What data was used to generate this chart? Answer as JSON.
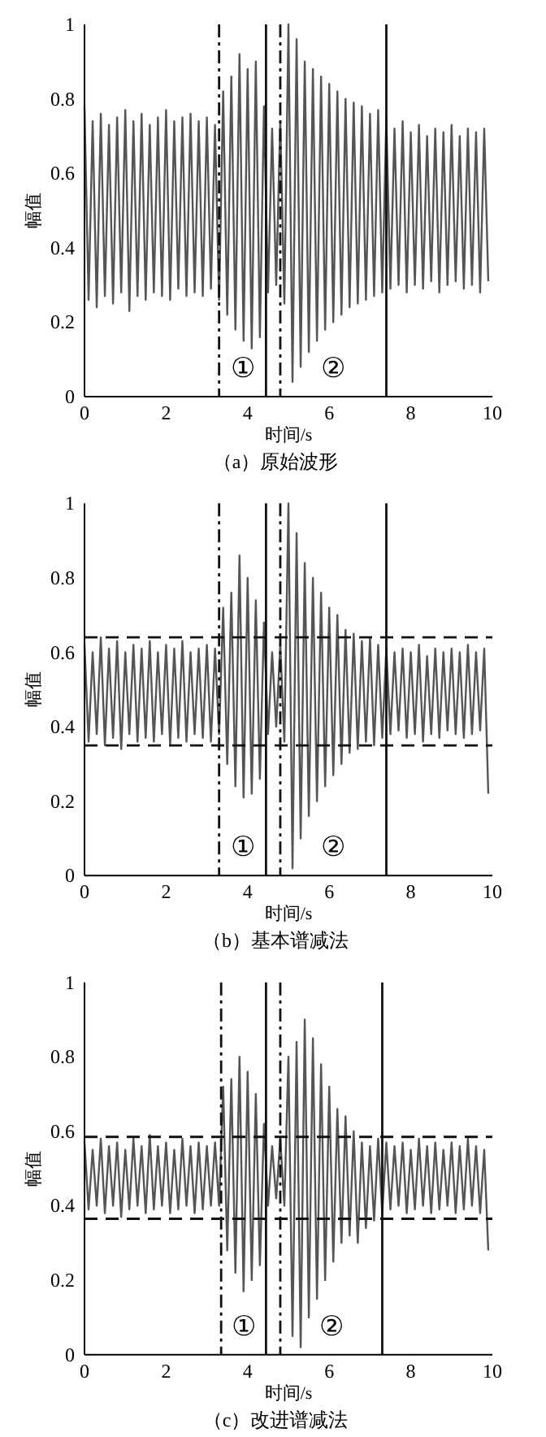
{
  "chart_data": [
    {
      "type": "line",
      "title": "（a）原始波形",
      "xlabel": "时间/s",
      "ylabel": "幅值",
      "xlim": [
        0,
        10
      ],
      "ylim": [
        0,
        1
      ],
      "xticks": [
        0,
        2,
        4,
        6,
        8,
        10
      ],
      "yticks": [
        0,
        0.2,
        0.4,
        0.6,
        0.8,
        1
      ],
      "x": [
        0,
        0.1,
        0.2,
        0.3,
        0.4,
        0.5,
        0.6,
        0.7,
        0.8,
        0.9,
        1,
        1.1,
        1.2,
        1.3,
        1.4,
        1.5,
        1.6,
        1.7,
        1.8,
        1.9,
        2,
        2.1,
        2.2,
        2.3,
        2.4,
        2.5,
        2.6,
        2.7,
        2.8,
        2.9,
        3,
        3.1,
        3.2,
        3.3,
        3.4,
        3.5,
        3.6,
        3.7,
        3.8,
        3.9,
        4,
        4.1,
        4.2,
        4.3,
        4.4,
        4.5,
        4.6,
        4.7,
        4.8,
        4.9,
        5,
        5.1,
        5.2,
        5.3,
        5.4,
        5.5,
        5.6,
        5.7,
        5.8,
        5.9,
        6,
        6.1,
        6.2,
        6.3,
        6.4,
        6.5,
        6.6,
        6.7,
        6.8,
        6.9,
        7,
        7.1,
        7.2,
        7.3,
        7.4,
        7.5,
        7.6,
        7.7,
        7.8,
        7.9,
        8,
        8.1,
        8.2,
        8.3,
        8.4,
        8.5,
        8.6,
        8.7,
        8.8,
        8.9,
        9,
        9.1,
        9.2,
        9.3,
        9.4,
        9.5,
        9.6,
        9.7,
        9.8,
        9.9
      ],
      "series": [
        {
          "color": "#555555",
          "values": [
            0.78,
            0.26,
            0.74,
            0.24,
            0.76,
            0.27,
            0.73,
            0.25,
            0.75,
            0.28,
            0.77,
            0.23,
            0.74,
            0.27,
            0.76,
            0.26,
            0.73,
            0.28,
            0.75,
            0.27,
            0.77,
            0.26,
            0.74,
            0.29,
            0.75,
            0.27,
            0.76,
            0.28,
            0.74,
            0.27,
            0.75,
            0.29,
            0.73,
            0.26,
            0.82,
            0.22,
            0.86,
            0.18,
            0.92,
            0.15,
            0.88,
            0.13,
            0.9,
            0.16,
            0.78,
            0.28,
            0.72,
            0.3,
            0.74,
            0.25,
            1.0,
            0.04,
            0.96,
            0.08,
            0.9,
            0.12,
            0.88,
            0.15,
            0.86,
            0.18,
            0.84,
            0.2,
            0.82,
            0.22,
            0.8,
            0.24,
            0.79,
            0.25,
            0.78,
            0.26,
            0.76,
            0.27,
            0.77,
            0.28,
            0.75,
            0.29,
            0.72,
            0.3,
            0.74,
            0.28,
            0.71,
            0.3,
            0.73,
            0.29,
            0.7,
            0.31,
            0.72,
            0.28,
            0.71,
            0.3,
            0.73,
            0.31,
            0.7,
            0.29,
            0.72,
            0.3,
            0.71,
            0.28,
            0.72,
            0.31
          ]
        }
      ],
      "ref_lines": [
        {
          "axis": "x",
          "value": 3.3,
          "line_style": "dashdot"
        },
        {
          "axis": "x",
          "value": 4.45,
          "line_style": "solid"
        },
        {
          "axis": "x",
          "value": 4.8,
          "line_style": "dashdot"
        },
        {
          "axis": "x",
          "value": 7.4,
          "line_style": "solid"
        }
      ],
      "annotations": [
        "①",
        "②"
      ]
    },
    {
      "type": "line",
      "title": "（b）基本谱减法",
      "xlabel": "时间/s",
      "ylabel": "幅值",
      "xlim": [
        0,
        10
      ],
      "ylim": [
        0,
        1
      ],
      "xticks": [
        0,
        2,
        4,
        6,
        8,
        10
      ],
      "yticks": [
        0,
        0.2,
        0.4,
        0.6,
        0.8,
        1
      ],
      "x": [
        0,
        0.1,
        0.2,
        0.3,
        0.4,
        0.5,
        0.6,
        0.7,
        0.8,
        0.9,
        1,
        1.1,
        1.2,
        1.3,
        1.4,
        1.5,
        1.6,
        1.7,
        1.8,
        1.9,
        2,
        2.1,
        2.2,
        2.3,
        2.4,
        2.5,
        2.6,
        2.7,
        2.8,
        2.9,
        3,
        3.1,
        3.2,
        3.3,
        3.4,
        3.5,
        3.6,
        3.7,
        3.8,
        3.9,
        4,
        4.1,
        4.2,
        4.3,
        4.4,
        4.5,
        4.6,
        4.7,
        4.8,
        4.9,
        5,
        5.1,
        5.2,
        5.3,
        5.4,
        5.5,
        5.6,
        5.7,
        5.8,
        5.9,
        6,
        6.1,
        6.2,
        6.3,
        6.4,
        6.5,
        6.6,
        6.7,
        6.8,
        6.9,
        7,
        7.1,
        7.2,
        7.3,
        7.4,
        7.5,
        7.6,
        7.7,
        7.8,
        7.9,
        8,
        8.1,
        8.2,
        8.3,
        8.4,
        8.5,
        8.6,
        8.7,
        8.8,
        8.9,
        9,
        9.1,
        9.2,
        9.3,
        9.4,
        9.5,
        9.6,
        9.7,
        9.8,
        9.9
      ],
      "series": [
        {
          "color": "#555555",
          "values": [
            0.62,
            0.36,
            0.6,
            0.38,
            0.64,
            0.35,
            0.61,
            0.37,
            0.63,
            0.34,
            0.6,
            0.38,
            0.62,
            0.36,
            0.61,
            0.37,
            0.63,
            0.36,
            0.6,
            0.38,
            0.62,
            0.35,
            0.61,
            0.37,
            0.63,
            0.36,
            0.6,
            0.38,
            0.61,
            0.37,
            0.62,
            0.36,
            0.61,
            0.38,
            0.72,
            0.3,
            0.76,
            0.24,
            0.86,
            0.21,
            0.8,
            0.22,
            0.74,
            0.26,
            0.68,
            0.38,
            0.6,
            0.4,
            0.62,
            0.36,
            1.0,
            0.02,
            0.92,
            0.1,
            0.84,
            0.16,
            0.8,
            0.2,
            0.76,
            0.24,
            0.72,
            0.27,
            0.7,
            0.3,
            0.66,
            0.33,
            0.65,
            0.34,
            0.63,
            0.36,
            0.64,
            0.35,
            0.62,
            0.37,
            0.61,
            0.38,
            0.6,
            0.39,
            0.61,
            0.37,
            0.6,
            0.38,
            0.62,
            0.36,
            0.59,
            0.38,
            0.61,
            0.37,
            0.6,
            0.39,
            0.61,
            0.38,
            0.6,
            0.37,
            0.62,
            0.38,
            0.6,
            0.39,
            0.61,
            0.22
          ]
        }
      ],
      "ref_lines": [
        {
          "axis": "y",
          "value": 0.64,
          "line_style": "dashed"
        },
        {
          "axis": "y",
          "value": 0.35,
          "line_style": "dashed"
        },
        {
          "axis": "x",
          "value": 3.3,
          "line_style": "dashdot"
        },
        {
          "axis": "x",
          "value": 4.45,
          "line_style": "solid"
        },
        {
          "axis": "x",
          "value": 4.8,
          "line_style": "dashdot"
        },
        {
          "axis": "x",
          "value": 7.4,
          "line_style": "solid"
        }
      ],
      "annotations": [
        "①",
        "②"
      ]
    },
    {
      "type": "line",
      "title": "（c）改进谱减法",
      "xlabel": "时间/s",
      "ylabel": "幅值",
      "xlim": [
        0,
        10
      ],
      "ylim": [
        0,
        1
      ],
      "xticks": [
        0,
        2,
        4,
        6,
        8,
        10
      ],
      "yticks": [
        0,
        0.2,
        0.4,
        0.6,
        0.8,
        1
      ],
      "x": [
        0,
        0.1,
        0.2,
        0.3,
        0.4,
        0.5,
        0.6,
        0.7,
        0.8,
        0.9,
        1,
        1.1,
        1.2,
        1.3,
        1.4,
        1.5,
        1.6,
        1.7,
        1.8,
        1.9,
        2,
        2.1,
        2.2,
        2.3,
        2.4,
        2.5,
        2.6,
        2.7,
        2.8,
        2.9,
        3,
        3.1,
        3.2,
        3.3,
        3.4,
        3.5,
        3.6,
        3.7,
        3.8,
        3.9,
        4,
        4.1,
        4.2,
        4.3,
        4.4,
        4.5,
        4.6,
        4.7,
        4.8,
        4.9,
        5,
        5.1,
        5.2,
        5.3,
        5.4,
        5.5,
        5.6,
        5.7,
        5.8,
        5.9,
        6,
        6.1,
        6.2,
        6.3,
        6.4,
        6.5,
        6.6,
        6.7,
        6.8,
        6.9,
        7,
        7.1,
        7.2,
        7.3,
        7.4,
        7.5,
        7.6,
        7.7,
        7.8,
        7.9,
        8,
        8.1,
        8.2,
        8.3,
        8.4,
        8.5,
        8.6,
        8.7,
        8.8,
        8.9,
        9,
        9.1,
        9.2,
        9.3,
        9.4,
        9.5,
        9.6,
        9.7,
        9.8,
        9.9
      ],
      "series": [
        {
          "color": "#555555",
          "values": [
            0.57,
            0.39,
            0.55,
            0.4,
            0.58,
            0.38,
            0.56,
            0.4,
            0.57,
            0.37,
            0.55,
            0.39,
            0.58,
            0.4,
            0.56,
            0.38,
            0.59,
            0.39,
            0.56,
            0.4,
            0.57,
            0.38,
            0.55,
            0.39,
            0.58,
            0.4,
            0.56,
            0.38,
            0.57,
            0.39,
            0.56,
            0.4,
            0.57,
            0.4,
            0.72,
            0.28,
            0.74,
            0.22,
            0.8,
            0.17,
            0.76,
            0.2,
            0.7,
            0.24,
            0.62,
            0.4,
            0.56,
            0.42,
            0.58,
            0.4,
            0.8,
            0.05,
            0.84,
            0.02,
            0.9,
            0.1,
            0.85,
            0.15,
            0.78,
            0.2,
            0.72,
            0.25,
            0.66,
            0.3,
            0.64,
            0.32,
            0.6,
            0.3,
            0.57,
            0.34,
            0.56,
            0.36,
            0.58,
            0.38,
            0.57,
            0.39,
            0.56,
            0.4,
            0.57,
            0.38,
            0.55,
            0.39,
            0.58,
            0.4,
            0.56,
            0.38,
            0.57,
            0.39,
            0.55,
            0.4,
            0.57,
            0.38,
            0.56,
            0.39,
            0.58,
            0.4,
            0.56,
            0.38,
            0.55,
            0.28
          ]
        }
      ],
      "ref_lines": [
        {
          "axis": "y",
          "value": 0.585,
          "line_style": "dashed"
        },
        {
          "axis": "y",
          "value": 0.365,
          "line_style": "dashed"
        },
        {
          "axis": "x",
          "value": 3.35,
          "line_style": "dashdot"
        },
        {
          "axis": "x",
          "value": 4.45,
          "line_style": "solid"
        },
        {
          "axis": "x",
          "value": 4.8,
          "line_style": "dashdot"
        },
        {
          "axis": "x",
          "value": 7.3,
          "line_style": "solid"
        }
      ],
      "annotations": [
        "①",
        "②"
      ]
    }
  ]
}
